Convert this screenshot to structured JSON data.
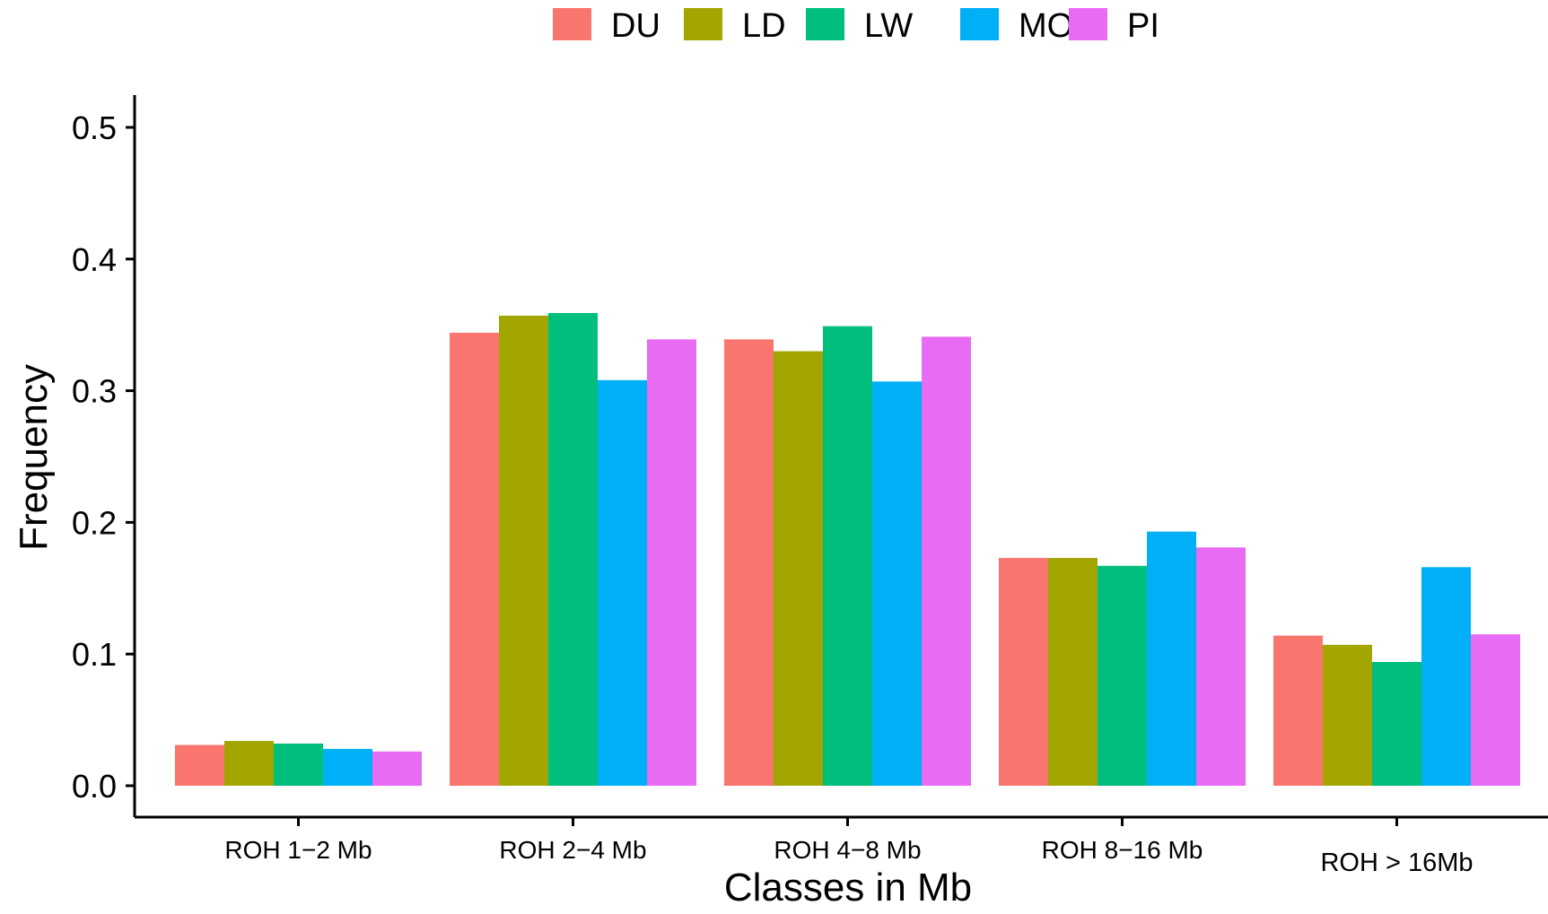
{
  "chart_data": {
    "type": "bar",
    "xlabel": "Classes in Mb",
    "ylabel": "Frequency",
    "ylim": [
      0,
      0.52
    ],
    "yticks": [
      "0.0",
      "0.1",
      "0.2",
      "0.3",
      "0.4",
      "0.5"
    ],
    "categories": [
      "ROH 1−2 Mb",
      "ROH 2−4 Mb",
      "ROH 4−8 Mb",
      "ROH 8−16 Mb",
      "ROH > 16Mb"
    ],
    "grid": false,
    "legend_position": "top",
    "series": [
      {
        "name": "DU",
        "color": "#F8766D",
        "values": [
          0.031,
          0.344,
          0.339,
          0.173,
          0.114
        ]
      },
      {
        "name": "LD",
        "color": "#A3A500",
        "values": [
          0.034,
          0.357,
          0.33,
          0.173,
          0.107
        ]
      },
      {
        "name": "LW",
        "color": "#00BF7D",
        "values": [
          0.032,
          0.359,
          0.349,
          0.167,
          0.094
        ]
      },
      {
        "name": "MO",
        "color": "#00B0F6",
        "values": [
          0.028,
          0.308,
          0.307,
          0.193,
          0.166
        ]
      },
      {
        "name": "PI",
        "color": "#E76BF3",
        "values": [
          0.026,
          0.339,
          0.341,
          0.181,
          0.115
        ]
      }
    ]
  }
}
